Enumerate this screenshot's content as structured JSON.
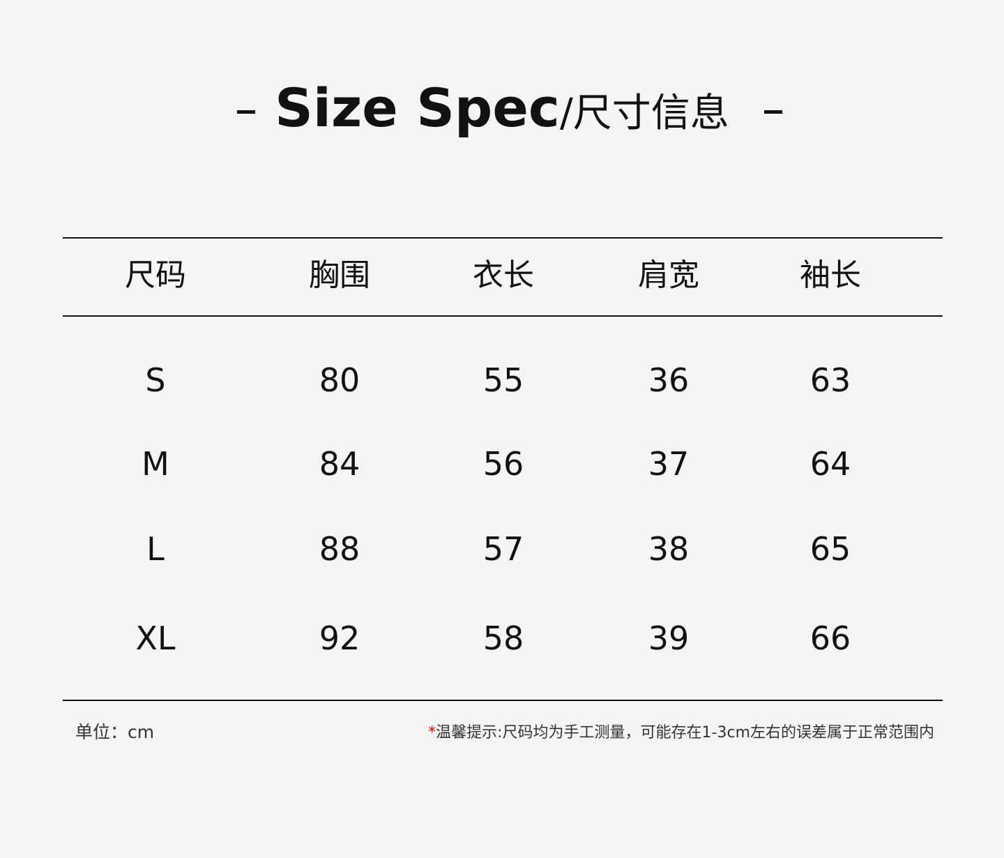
{
  "title": {
    "english": "Size Spec",
    "chinese": "/尺寸信息"
  },
  "table": {
    "headers": [
      "尺码",
      "胸围",
      "衣长",
      "肩宽",
      "袖长"
    ],
    "rows": [
      [
        "S",
        "80",
        "55",
        "36",
        "63"
      ],
      [
        "M",
        "84",
        "56",
        "37",
        "64"
      ],
      [
        "L",
        "88",
        "57",
        "38",
        "65"
      ],
      [
        "XL",
        "92",
        "58",
        "39",
        "66"
      ]
    ]
  },
  "footer": {
    "unit": "单位：cm",
    "note_mark": "*",
    "note": "温馨提示:尺码均为手工测量，可能存在1-3cm左右的误差属于正常范围内"
  },
  "colors": {
    "background": "#f5f5f5",
    "text": "#111111",
    "note_mark": "#d00000"
  }
}
